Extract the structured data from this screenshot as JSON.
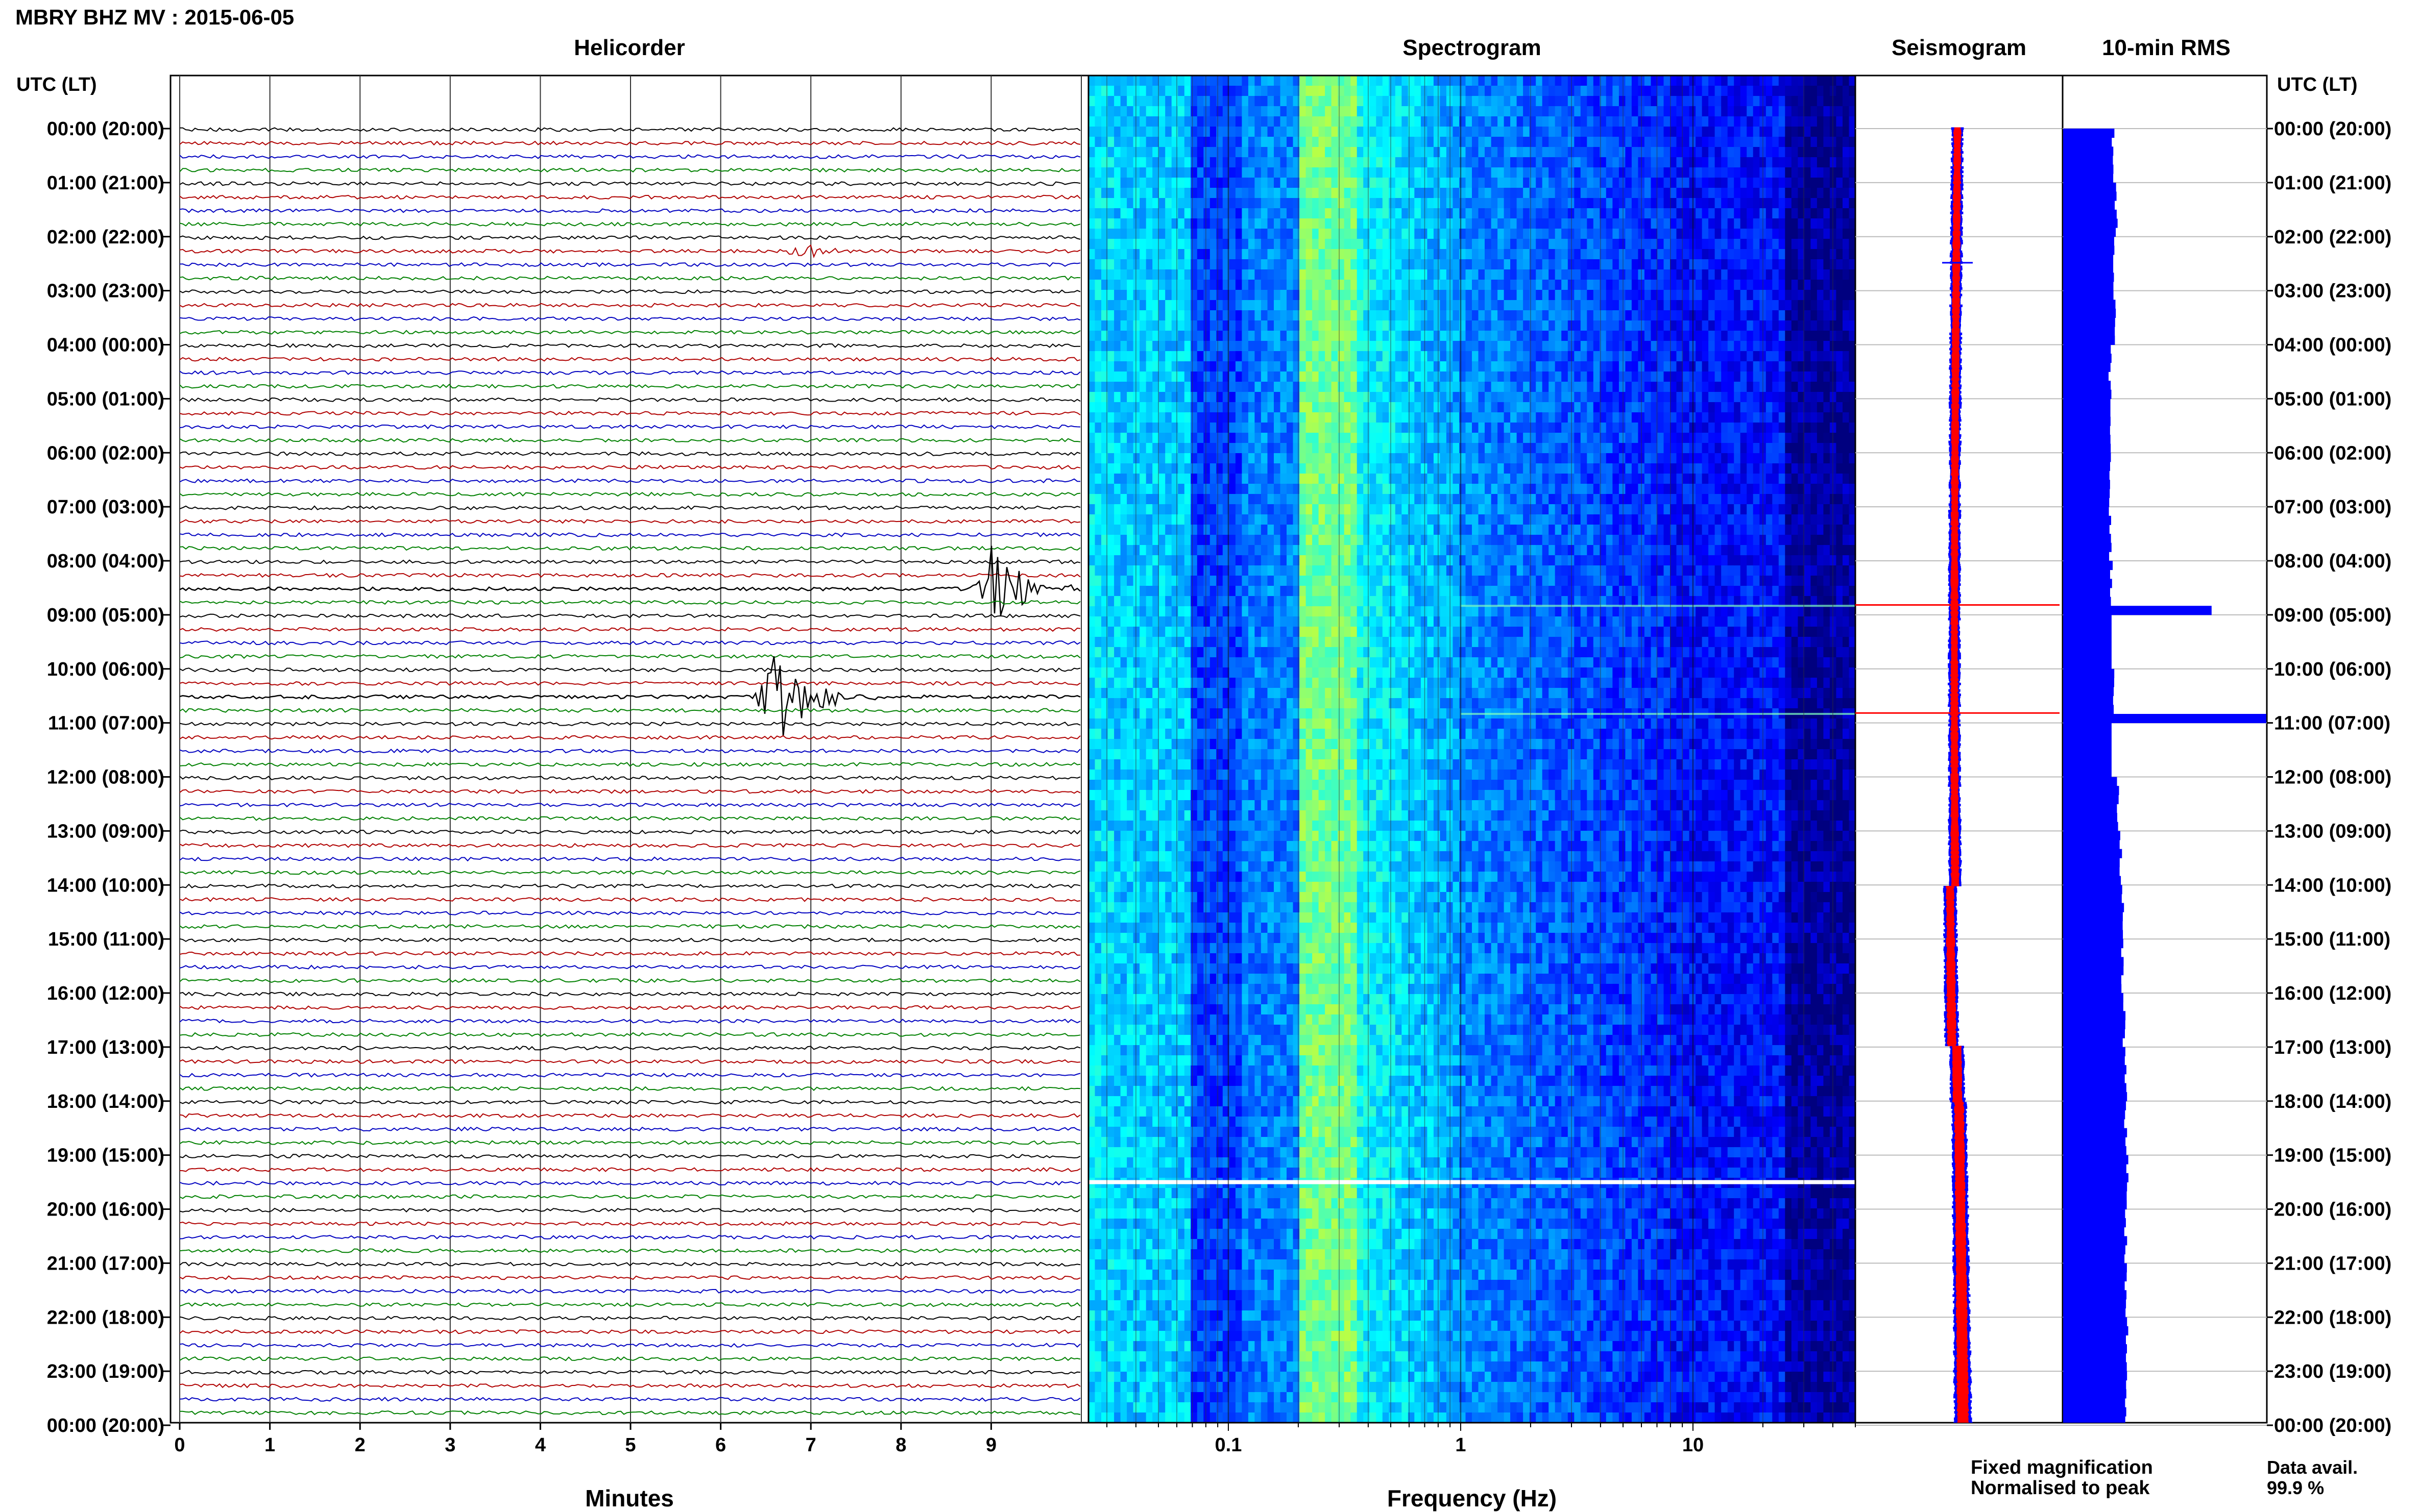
{
  "figure": {
    "title": "MBRY BHZ MV : 2015-06-05"
  },
  "chart_data": [
    {
      "type": "line",
      "title": "Helicorder",
      "xlabel": "Minutes",
      "xlim": [
        0,
        10
      ],
      "x_ticks": [
        "0",
        "1",
        "2",
        "3",
        "4",
        "5",
        "6",
        "7",
        "8",
        "9"
      ],
      "y_axis_label": "UTC (LT)",
      "y_ticks": [
        "00:00 (20:00)",
        "01:00 (21:00)",
        "02:00 (22:00)",
        "03:00 (23:00)",
        "04:00 (00:00)",
        "05:00 (01:00)",
        "06:00 (02:00)",
        "07:00 (03:00)",
        "08:00 (04:00)",
        "09:00 (05:00)",
        "10:00 (06:00)",
        "11:00 (07:00)",
        "12:00 (08:00)",
        "13:00 (09:00)",
        "14:00 (10:00)",
        "15:00 (11:00)",
        "16:00 (12:00)",
        "17:00 (13:00)",
        "18:00 (14:00)",
        "19:00 (15:00)",
        "20:00 (16:00)",
        "21:00 (17:00)",
        "22:00 (18:00)",
        "23:00 (19:00)",
        "00:00 (20:00)"
      ],
      "trace_colors": [
        "#000000",
        "#b00000",
        "#0000c0",
        "#008000"
      ],
      "events": [
        {
          "time_utc": "08:40",
          "minute": 9.0,
          "note": "largest amplitude trace, black"
        },
        {
          "time_utc": "10:40",
          "minute": 6.6,
          "note": "large amplitude trace, black"
        },
        {
          "time_utc": "02:20",
          "minute": 6.9,
          "note": "small burst, green"
        }
      ],
      "grid": true
    },
    {
      "type": "heatmap",
      "title": "Spectrogram",
      "xlabel": "Frequency (Hz)",
      "x_scale": "log",
      "xlim": [
        0.025,
        50
      ],
      "x_ticks": [
        "0.1",
        "1",
        "10"
      ],
      "colormap": [
        "#00007f",
        "#0000ff",
        "#007fff",
        "#00ffff",
        "#7fff7f",
        "#ffff00"
      ],
      "features": [
        {
          "time_utc": "19:30",
          "note": "white data gap line"
        },
        {
          "time_utc": "08:50",
          "note": "broadband event line"
        },
        {
          "time_utc": "10:50",
          "note": "broadband event line"
        }
      ]
    },
    {
      "type": "line",
      "title": "Seismogram",
      "series": [
        {
          "name": "Fixed magnification",
          "color": "#0000ff"
        },
        {
          "name": "Normalised to peak",
          "color": "#ff0000"
        }
      ]
    },
    {
      "type": "bar",
      "title": "10-min RMS",
      "orientation": "horizontal",
      "y_axis_label": "UTC (LT)",
      "color": "#0000ff",
      "hour_values": [
        0.32,
        0.34,
        0.33,
        0.33,
        0.3,
        0.31,
        0.3,
        0.3,
        0.31,
        0.95,
        0.32,
        1.3,
        0.35,
        0.37,
        0.38,
        0.38,
        0.39,
        0.4,
        0.4,
        0.41,
        0.4,
        0.4,
        0.41,
        0.4,
        0.41
      ],
      "rms_max": 1.3
    }
  ],
  "footer": {
    "legend_fixed": "Fixed magnification",
    "legend_normalised": "Normalised to peak",
    "data_avail_label": "Data avail.",
    "data_avail_value": "99.9 %",
    "colors": {
      "fixed": "#0000ff",
      "normalised": "#ff0000"
    }
  }
}
